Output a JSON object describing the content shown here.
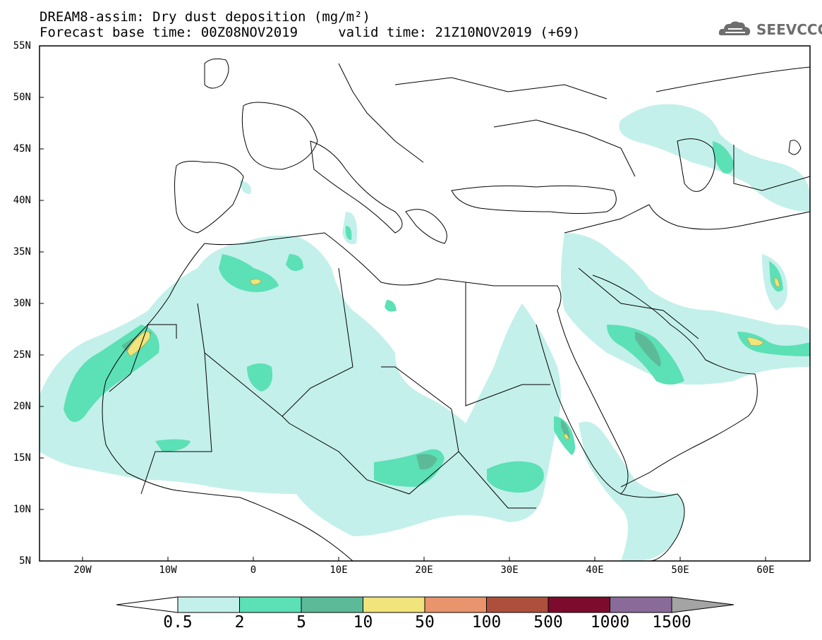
{
  "header": {
    "title_line1": "DREAM8-assim: Dry dust deposition (mg/m²)",
    "title_line2": "Forecast base time: 00Z08NOV2019     valid time: 21Z10NOV2019 (+69)",
    "logo_text": "SEEVCCC"
  },
  "map": {
    "lat_labels": [
      "55N",
      "50N",
      "45N",
      "40N",
      "35N",
      "30N",
      "25N",
      "20N",
      "15N",
      "10N",
      "5N"
    ],
    "lon_labels": [
      "20W",
      "10W",
      "0",
      "10E",
      "20E",
      "30E",
      "40E",
      "50E",
      "60E"
    ],
    "extent": {
      "lon_min": -25,
      "lon_max": 65,
      "lat_min": 5,
      "lat_max": 55
    }
  },
  "colorbar": {
    "labels": [
      "0.5",
      "2",
      "5",
      "10",
      "50",
      "100",
      "500",
      "1000",
      "1500"
    ],
    "colors": [
      "#c3f0ea",
      "#5ce0b6",
      "#5cba98",
      "#f0e47a",
      "#e9946c",
      "#ae4f3c",
      "#7c0b2d",
      "#8a6a98"
    ],
    "end_colors": {
      "low": "#ffffff",
      "high": "#a4a4a4"
    }
  }
}
